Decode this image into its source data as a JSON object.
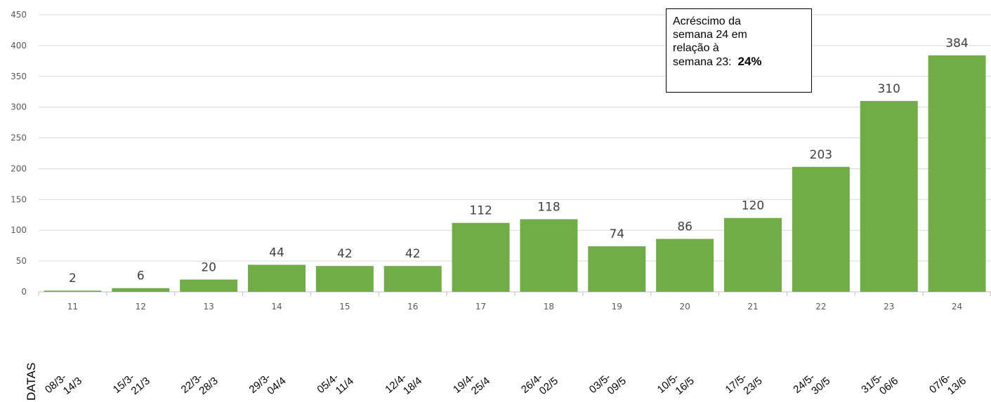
{
  "chart_data": {
    "type": "bar",
    "categories": [
      "11",
      "12",
      "13",
      "14",
      "15",
      "16",
      "17",
      "18",
      "19",
      "20",
      "21",
      "22",
      "23",
      "24"
    ],
    "values": [
      2,
      6,
      20,
      44,
      42,
      42,
      112,
      118,
      74,
      86,
      120,
      203,
      310,
      384
    ],
    "date_labels": [
      [
        "08/3-",
        "14/3"
      ],
      [
        "15/3-",
        "21/3"
      ],
      [
        "22/3-",
        "28/3"
      ],
      [
        "29/3-",
        "04/4"
      ],
      [
        "05/4-",
        "11/4"
      ],
      [
        "12/4-",
        "18/4"
      ],
      [
        "19/4-",
        "25/4"
      ],
      [
        "26/4-",
        "02/5"
      ],
      [
        "03/5-",
        "09/5"
      ],
      [
        "10/5-",
        "16/5"
      ],
      [
        "17/5-",
        "23/5"
      ],
      [
        "24/5-",
        "30/5"
      ],
      [
        "31/5-",
        "06/6"
      ],
      [
        "07/6-",
        "13/6"
      ]
    ],
    "date_axis_label": "DATAS",
    "ylim": [
      0,
      450
    ],
    "yticks": [
      0,
      50,
      100,
      150,
      200,
      250,
      300,
      350,
      400,
      450
    ],
    "grid": true,
    "bar_color": "#70ad47",
    "annotation": {
      "lines": [
        "Acréscimo da",
        "semana 24 em",
        "relação à",
        "semana 23:"
      ],
      "value": "24%"
    }
  }
}
